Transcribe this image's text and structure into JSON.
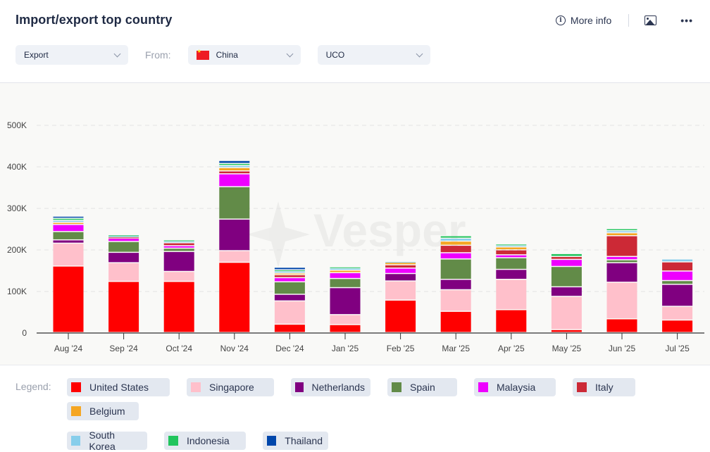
{
  "header": {
    "title": "Import/export top country",
    "more_info_label": "More info",
    "icons": {
      "info": "info-circle-icon",
      "image": "image-download-icon",
      "more": "more-dots-icon"
    }
  },
  "filters": {
    "trade_type": {
      "value": "Export"
    },
    "from_label": "From:",
    "country": {
      "value": "China",
      "flag": "china-flag-icon"
    },
    "product": {
      "value": "UCO"
    }
  },
  "watermark": "Vesper",
  "legend": {
    "label": "Legend:"
  },
  "chart_data": {
    "type": "bar",
    "stacked": true,
    "title": "Import/export top country",
    "xlabel": "",
    "ylabel": "",
    "ylim": [
      0,
      500000
    ],
    "yticks": [
      0,
      100000,
      200000,
      300000,
      400000,
      500000
    ],
    "ytick_labels": [
      "0",
      "100K",
      "200K",
      "300K",
      "400K",
      "500K"
    ],
    "grid": true,
    "legend_position": "bottom",
    "categories": [
      "Aug '24",
      "Sep '24",
      "Oct '24",
      "Nov '24",
      "Dec '24",
      "Jan '25",
      "Feb '25",
      "Mar '25",
      "Apr '25",
      "May '25",
      "Jun '25",
      "Jul '25"
    ],
    "series": [
      {
        "name": "United States",
        "color": "#ff0000",
        "values": [
          160000,
          123000,
          123000,
          169000,
          20000,
          19000,
          78000,
          51000,
          55000,
          7000,
          33000,
          30000
        ]
      },
      {
        "name": "Singapore",
        "color": "#ffc0cb",
        "values": [
          55000,
          45000,
          24000,
          28000,
          56000,
          24000,
          46000,
          52000,
          73000,
          80000,
          88000,
          33000
        ]
      },
      {
        "name": "Netherlands",
        "color": "#800080",
        "values": [
          8000,
          25000,
          48000,
          76000,
          16000,
          65000,
          18000,
          25000,
          24000,
          23000,
          47000,
          53000
        ]
      },
      {
        "name": "Spain",
        "color": "#628b48",
        "values": [
          20000,
          26000,
          8000,
          78000,
          30000,
          22000,
          0,
          49000,
          28000,
          49000,
          7000,
          9000
        ]
      },
      {
        "name": "Malaysia",
        "color": "#ee00ff",
        "values": [
          17000,
          8000,
          6000,
          31000,
          10000,
          14000,
          13000,
          15000,
          7000,
          17000,
          8000,
          23000
        ]
      },
      {
        "name": "Italy",
        "color": "#cc2936",
        "values": [
          0,
          3000,
          7000,
          7000,
          7000,
          0,
          8000,
          18000,
          12000,
          7000,
          50000,
          22000
        ]
      },
      {
        "name": "Belgium",
        "color": "#f5a623",
        "values": [
          5000,
          0,
          0,
          8000,
          4000,
          6000,
          6000,
          10000,
          7000,
          0,
          7000,
          0
        ]
      },
      {
        "name": "South Korea",
        "color": "#87ceeb",
        "values": [
          5000,
          3000,
          4000,
          5000,
          5000,
          5000,
          2000,
          7000,
          4000,
          0,
          5000,
          7000
        ]
      },
      {
        "name": "Indonesia",
        "color": "#22c55e",
        "values": [
          5000,
          2000,
          3000,
          5000,
          3000,
          3000,
          0,
          6000,
          3000,
          7000,
          5000,
          0
        ]
      },
      {
        "name": "Thailand",
        "color": "#0047ab",
        "values": [
          5000,
          0,
          0,
          7000,
          6000,
          0,
          0,
          0,
          0,
          0,
          0,
          0
        ]
      }
    ]
  }
}
